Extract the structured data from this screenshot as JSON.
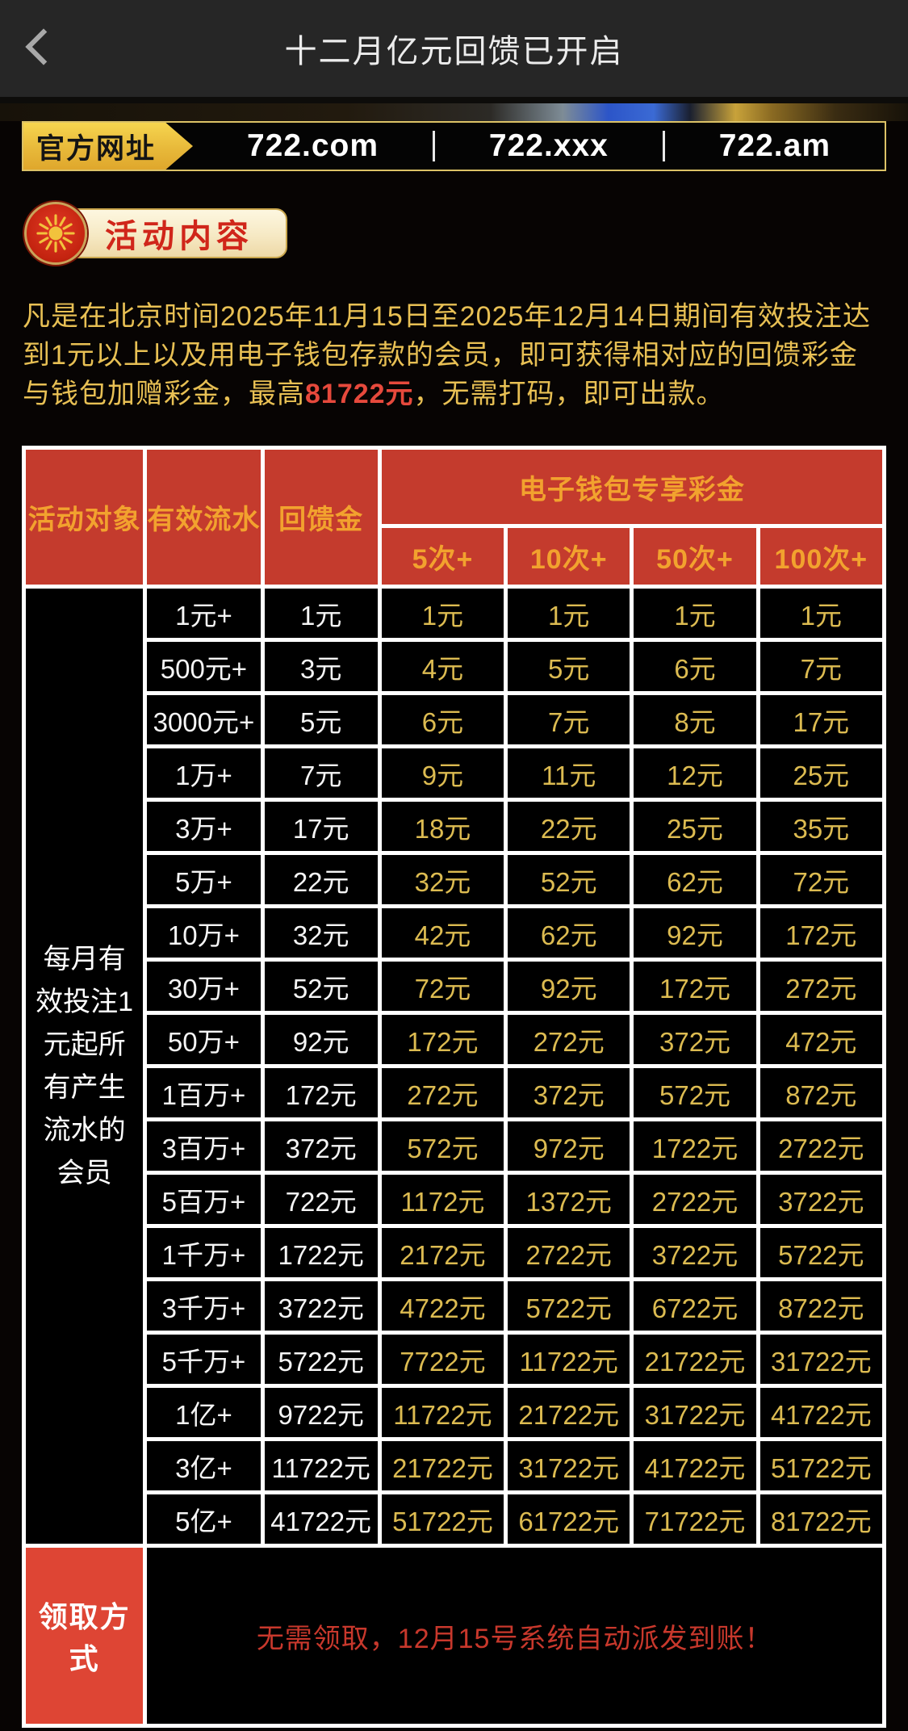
{
  "app_bar": {
    "title": "十二月亿元回馈已开启"
  },
  "url_bar": {
    "label": "官方网址",
    "urls": [
      "722.com",
      "722.xxx",
      "722.am"
    ]
  },
  "section_badge": {
    "label": "活动内容"
  },
  "intro": {
    "part1": "凡是在北京时间2025年11月15日至2025年12月14日期间有效投注达到1元以上以及用电子钱包存款的会员，即可获得相对应的回馈彩金与钱包加赠彩金，最高",
    "highlight": "81722元",
    "part2": "，无需打码，即可出款。"
  },
  "table": {
    "col_object": "活动对象",
    "col_flow": "有效流水",
    "col_rebate": "回馈金",
    "wallet_group": "电子钱包专享彩金",
    "subheaders": [
      "5次+",
      "10次+",
      "50次+",
      "100次+"
    ],
    "target": "每月有效投注1元起所有产生流水的会员",
    "rows": [
      {
        "flow": "1元+",
        "rebate": "1元",
        "bonuses": [
          "1元",
          "1元",
          "1元",
          "1元"
        ]
      },
      {
        "flow": "500元+",
        "rebate": "3元",
        "bonuses": [
          "4元",
          "5元",
          "6元",
          "7元"
        ]
      },
      {
        "flow": "3000元+",
        "rebate": "5元",
        "bonuses": [
          "6元",
          "7元",
          "8元",
          "17元"
        ]
      },
      {
        "flow": "1万+",
        "rebate": "7元",
        "bonuses": [
          "9元",
          "11元",
          "12元",
          "25元"
        ]
      },
      {
        "flow": "3万+",
        "rebate": "17元",
        "bonuses": [
          "18元",
          "22元",
          "25元",
          "35元"
        ]
      },
      {
        "flow": "5万+",
        "rebate": "22元",
        "bonuses": [
          "32元",
          "52元",
          "62元",
          "72元"
        ]
      },
      {
        "flow": "10万+",
        "rebate": "32元",
        "bonuses": [
          "42元",
          "62元",
          "92元",
          "172元"
        ]
      },
      {
        "flow": "30万+",
        "rebate": "52元",
        "bonuses": [
          "72元",
          "92元",
          "172元",
          "272元"
        ]
      },
      {
        "flow": "50万+",
        "rebate": "92元",
        "bonuses": [
          "172元",
          "272元",
          "372元",
          "472元"
        ]
      },
      {
        "flow": "1百万+",
        "rebate": "172元",
        "bonuses": [
          "272元",
          "372元",
          "572元",
          "872元"
        ]
      },
      {
        "flow": "3百万+",
        "rebate": "372元",
        "bonuses": [
          "572元",
          "972元",
          "1722元",
          "2722元"
        ]
      },
      {
        "flow": "5百万+",
        "rebate": "722元",
        "bonuses": [
          "1172元",
          "1372元",
          "2722元",
          "3722元"
        ]
      },
      {
        "flow": "1千万+",
        "rebate": "1722元",
        "bonuses": [
          "2172元",
          "2722元",
          "3722元",
          "5722元"
        ]
      },
      {
        "flow": "3千万+",
        "rebate": "3722元",
        "bonuses": [
          "4722元",
          "5722元",
          "6722元",
          "8722元"
        ]
      },
      {
        "flow": "5千万+",
        "rebate": "5722元",
        "bonuses": [
          "7722元",
          "11722元",
          "21722元",
          "31722元"
        ]
      },
      {
        "flow": "1亿+",
        "rebate": "9722元",
        "bonuses": [
          "11722元",
          "21722元",
          "31722元",
          "41722元"
        ]
      },
      {
        "flow": "3亿+",
        "rebate": "11722元",
        "bonuses": [
          "21722元",
          "31722元",
          "41722元",
          "51722元"
        ]
      },
      {
        "flow": "5亿+",
        "rebate": "41722元",
        "bonuses": [
          "51722元",
          "61722元",
          "71722元",
          "81722元"
        ]
      }
    ],
    "claim": {
      "label": "领取方式",
      "note": "无需领取，12月15号系统自动派发到账！"
    }
  },
  "colors": {
    "header_red": "#c43b2d",
    "header_text_orange": "#f2a22e",
    "gold_text": "#dcbb51",
    "gold_border": "#dcc266",
    "claim_red": "#de4534",
    "highlight_red": "#e6493c",
    "intro_gold": "#e8c054"
  }
}
